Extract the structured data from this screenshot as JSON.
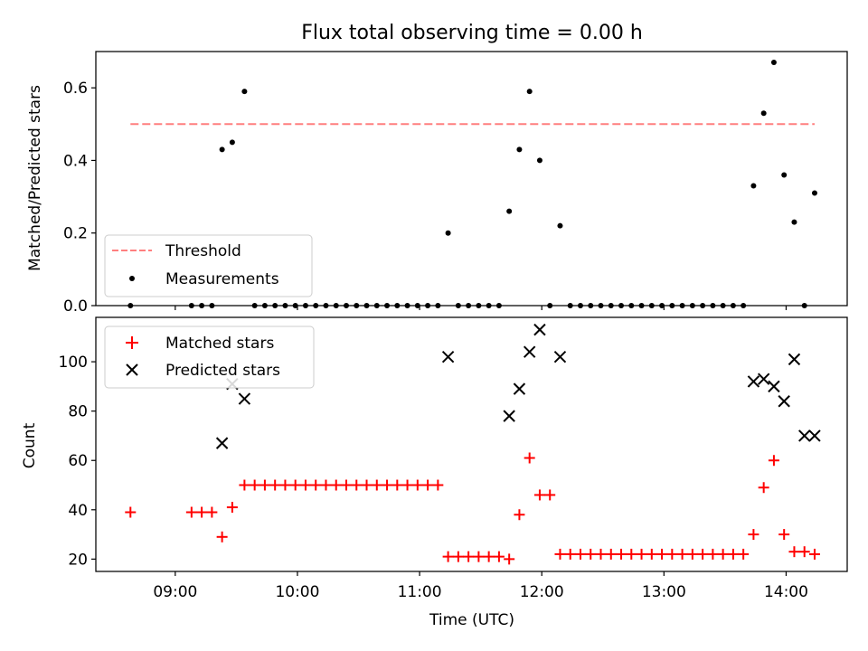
{
  "title": "Flux total observing time = 0.00 h",
  "colors": {
    "threshold": "#ff7f7f",
    "measurements": "#000000",
    "matched": "#ff0000",
    "predicted": "#000000",
    "axes": "#000000"
  },
  "chart_data": [
    {
      "type": "scatter",
      "ylabel": "Matched/Predicted stars",
      "xlim": [
        "08:21",
        "14:30"
      ],
      "ylim": [
        0,
        0.7
      ],
      "yticks": [
        0.0,
        0.2,
        0.4,
        0.6
      ],
      "ytick_labels": [
        "0.0",
        "0.2",
        "0.4",
        "0.6"
      ],
      "legend_position": "lower-left",
      "legend": [
        "Threshold",
        "Measurements"
      ],
      "series": [
        {
          "name": "Threshold",
          "style": "dashed-line",
          "x": [
            "08:38",
            "14:14"
          ],
          "y": [
            0.5,
            0.5
          ]
        },
        {
          "name": "Measurements",
          "style": "dot",
          "x": [
            "08:38",
            "09:08",
            "09:13",
            "09:18",
            "09:23",
            "09:28",
            "09:34",
            "09:39",
            "09:44",
            "09:49",
            "09:54",
            "09:59",
            "10:04",
            "10:09",
            "10:14",
            "10:19",
            "10:24",
            "10:29",
            "10:34",
            "10:39",
            "10:44",
            "10:49",
            "10:54",
            "10:59",
            "11:04",
            "11:09",
            "11:14",
            "11:19",
            "11:24",
            "11:29",
            "11:34",
            "11:39",
            "11:44",
            "11:49",
            "11:54",
            "11:59",
            "12:04",
            "12:09",
            "12:14",
            "12:19",
            "12:24",
            "12:29",
            "12:34",
            "12:39",
            "12:44",
            "12:49",
            "12:54",
            "12:59",
            "13:04",
            "13:09",
            "13:14",
            "13:19",
            "13:24",
            "13:29",
            "13:34",
            "13:39",
            "13:44",
            "13:49",
            "13:54",
            "13:59",
            "14:04",
            "14:09",
            "14:14"
          ],
          "y": [
            0.0,
            0.0,
            0.0,
            0.0,
            0.43,
            0.45,
            0.59,
            0.0,
            0.0,
            0.0,
            0.0,
            0.0,
            0.0,
            0.0,
            0.0,
            0.0,
            0.0,
            0.0,
            0.0,
            0.0,
            0.0,
            0.0,
            0.0,
            0.0,
            0.0,
            0.0,
            0.2,
            0.0,
            0.0,
            0.0,
            0.0,
            0.0,
            0.26,
            0.43,
            0.59,
            0.4,
            0.0,
            0.22,
            0.0,
            0.0,
            0.0,
            0.0,
            0.0,
            0.0,
            0.0,
            0.0,
            0.0,
            0.0,
            0.0,
            0.0,
            0.0,
            0.0,
            0.0,
            0.0,
            0.0,
            0.0,
            0.33,
            0.53,
            0.67,
            0.36,
            0.23,
            0.0,
            0.31
          ]
        }
      ]
    },
    {
      "type": "scatter",
      "ylabel": "Count",
      "xlabel": "Time (UTC)",
      "xlim": [
        "08:21",
        "14:30"
      ],
      "ylim": [
        15,
        118
      ],
      "xticks": [
        "09:00",
        "10:00",
        "11:00",
        "12:00",
        "13:00",
        "14:00"
      ],
      "yticks": [
        20,
        40,
        60,
        80,
        100
      ],
      "ytick_labels": [
        "20",
        "40",
        "60",
        "80",
        "100"
      ],
      "legend_position": "upper-left",
      "legend": [
        "Matched stars",
        "Predicted stars"
      ],
      "series": [
        {
          "name": "Matched stars",
          "style": "plus",
          "x": [
            "08:38",
            "09:08",
            "09:13",
            "09:18",
            "09:23",
            "09:28",
            "09:34",
            "09:39",
            "09:44",
            "09:49",
            "09:54",
            "09:59",
            "10:04",
            "10:09",
            "10:14",
            "10:19",
            "10:24",
            "10:29",
            "10:34",
            "10:39",
            "10:44",
            "10:49",
            "10:54",
            "10:59",
            "11:04",
            "11:09",
            "11:14",
            "11:19",
            "11:24",
            "11:29",
            "11:34",
            "11:39",
            "11:44",
            "11:49",
            "11:54",
            "11:59",
            "12:04",
            "12:09",
            "12:14",
            "12:19",
            "12:24",
            "12:29",
            "12:34",
            "12:39",
            "12:44",
            "12:49",
            "12:54",
            "12:59",
            "13:04",
            "13:09",
            "13:14",
            "13:19",
            "13:24",
            "13:29",
            "13:34",
            "13:39",
            "13:44",
            "13:49",
            "13:54",
            "13:59",
            "14:04",
            "14:09",
            "14:14"
          ],
          "y": [
            39,
            39,
            39,
            39,
            29,
            41,
            50,
            50,
            50,
            50,
            50,
            50,
            50,
            50,
            50,
            50,
            50,
            50,
            50,
            50,
            50,
            50,
            50,
            50,
            50,
            50,
            21,
            21,
            21,
            21,
            21,
            21,
            20,
            38,
            61,
            46,
            46,
            22,
            22,
            22,
            22,
            22,
            22,
            22,
            22,
            22,
            22,
            22,
            22,
            22,
            22,
            22,
            22,
            22,
            22,
            22,
            30,
            49,
            60,
            30,
            23,
            23,
            22
          ]
        },
        {
          "name": "Predicted stars",
          "style": "x",
          "x": [
            "09:23",
            "09:28",
            "09:34",
            "11:14",
            "11:44",
            "11:49",
            "11:54",
            "11:59",
            "12:09",
            "13:44",
            "13:49",
            "13:54",
            "13:59",
            "14:04",
            "14:09",
            "14:14"
          ],
          "y": [
            67,
            91,
            85,
            102,
            78,
            89,
            104,
            113,
            102,
            92,
            93,
            90,
            84,
            101,
            70,
            70
          ]
        }
      ]
    }
  ]
}
